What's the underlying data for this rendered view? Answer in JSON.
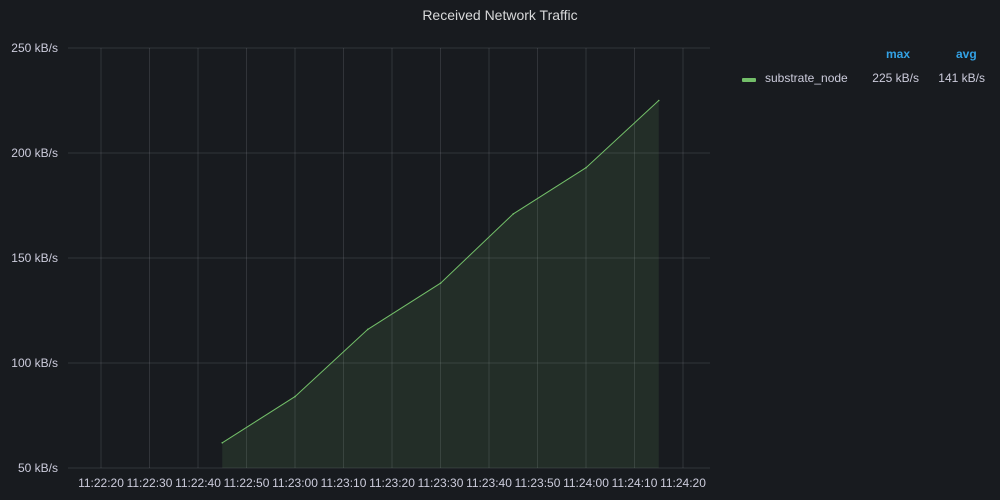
{
  "panel": {
    "title": "Received Network Traffic"
  },
  "legend": {
    "headers": {
      "max": "max",
      "avg": "avg"
    },
    "series": [
      {
        "name": "substrate_node",
        "max": "225 kB/s",
        "avg": "141 kB/s",
        "color": "#73bf69"
      }
    ]
  },
  "chart_data": {
    "type": "area",
    "title": "Received Network Traffic",
    "y_unit": "kB/s",
    "ylim": [
      50,
      250
    ],
    "y_ticks": [
      {
        "value": 50,
        "label": "50 kB/s"
      },
      {
        "value": 100,
        "label": "100 kB/s"
      },
      {
        "value": 150,
        "label": "150 kB/s"
      },
      {
        "value": 200,
        "label": "200 kB/s"
      },
      {
        "value": 250,
        "label": "250 kB/s"
      }
    ],
    "x_ticks": [
      "11:22:20",
      "11:22:30",
      "11:22:40",
      "11:22:50",
      "11:23:00",
      "11:23:10",
      "11:23:20",
      "11:23:30",
      "11:23:40",
      "11:23:50",
      "11:24:00",
      "11:24:10",
      "11:24:20"
    ],
    "x_range": [
      "11:22:20",
      "11:24:20"
    ],
    "grid": true,
    "legend_position": "right",
    "series": [
      {
        "name": "substrate_node",
        "color": "#73bf69",
        "points": [
          {
            "x": "11:22:45",
            "y": 62
          },
          {
            "x": "11:23:00",
            "y": 84
          },
          {
            "x": "11:23:15",
            "y": 116
          },
          {
            "x": "11:23:30",
            "y": 138
          },
          {
            "x": "11:23:45",
            "y": 171
          },
          {
            "x": "11:24:00",
            "y": 193
          },
          {
            "x": "11:24:15",
            "y": 225
          }
        ]
      }
    ]
  }
}
